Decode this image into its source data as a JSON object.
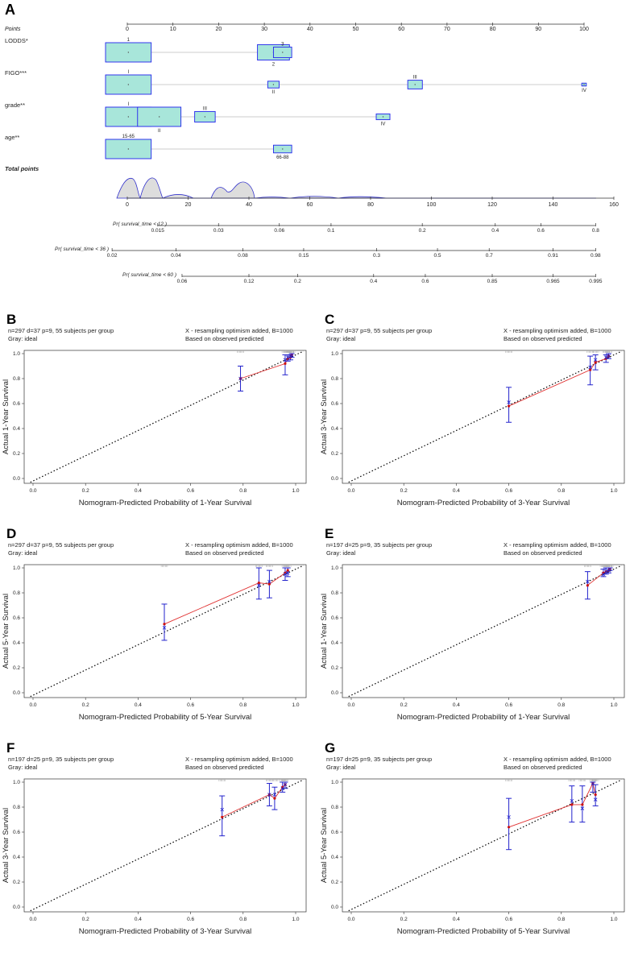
{
  "figure_title": "Nomogram and calibration curves",
  "chart_data": [
    {
      "panel": "A",
      "type": "nomogram",
      "points_axis": {
        "label": "Points",
        "ticks": [
          "0",
          "10",
          "20",
          "30",
          "40",
          "50",
          "60",
          "70",
          "80",
          "90",
          "100"
        ]
      },
      "variables": [
        {
          "name": "LODDS*",
          "levels": [
            {
              "label": "1",
              "points": 0,
              "box_width": 10,
              "box_height": 1.0
            },
            {
              "label": "2",
              "points": 32,
              "box_width": 7,
              "box_height": 0.8
            },
            {
              "label": "3",
              "points": 34,
              "box_width": 4,
              "box_height": 0.55
            }
          ]
        },
        {
          "name": "FIGO***",
          "levels": [
            {
              "label": "I",
              "points": 0,
              "box_width": 10,
              "box_height": 1.0
            },
            {
              "label": "II",
              "points": 32,
              "box_width": 2.5,
              "box_height": 0.35
            },
            {
              "label": "III",
              "points": 63,
              "box_width": 3.2,
              "box_height": 0.45
            },
            {
              "label": "IV",
              "points": 100,
              "box_width": 1,
              "box_height": 0.15
            }
          ]
        },
        {
          "name": "grade**",
          "levels": [
            {
              "label": "I",
              "points": 0,
              "box_width": 10,
              "box_height": 1.0
            },
            {
              "label": "II",
              "points": 7,
              "box_width": 9.5,
              "box_height": 1.0
            },
            {
              "label": "III",
              "points": 17,
              "box_width": 4.5,
              "box_height": 0.55
            },
            {
              "label": "IV",
              "points": 56,
              "box_width": 3,
              "box_height": 0.3
            }
          ]
        },
        {
          "name": "age**",
          "levels": [
            {
              "label": "15-65",
              "points": 0,
              "box_width": 10,
              "box_height": 1.0
            },
            {
              "label": "66-88",
              "points": 34,
              "box_width": 4,
              "box_height": 0.4
            }
          ]
        }
      ],
      "total_points_axis": {
        "label": "Total points",
        "ticks": [
          "0",
          "20",
          "40",
          "60",
          "80",
          "100",
          "120",
          "140",
          "160"
        ]
      },
      "probability_axes": [
        {
          "label": "Pr( survival_time < 12 )",
          "ticks": [
            {
              "label": "0.015",
              "total": 10
            },
            {
              "label": "0.03",
              "total": 30
            },
            {
              "label": "0.06",
              "total": 50
            },
            {
              "label": "0.1",
              "total": 67
            },
            {
              "label": "0.2",
              "total": 97
            },
            {
              "label": "0.4",
              "total": 121
            },
            {
              "label": "0.6",
              "total": 136
            },
            {
              "label": "0.8",
              "total": 154
            }
          ]
        },
        {
          "label": "Pr( survival_time < 36 )",
          "ticks": [
            {
              "label": "0.02",
              "total": -5
            },
            {
              "label": "0.04",
              "total": 16
            },
            {
              "label": "0.08",
              "total": 38
            },
            {
              "label": "0.15",
              "total": 58
            },
            {
              "label": "0.3",
              "total": 82
            },
            {
              "label": "0.5",
              "total": 102
            },
            {
              "label": "0.7",
              "total": 119
            },
            {
              "label": "0.91",
              "total": 140
            },
            {
              "label": "0.98",
              "total": 154
            }
          ]
        },
        {
          "label": "Pr( survival_time < 60 )",
          "ticks": [
            {
              "label": "0.06",
              "total": 18
            },
            {
              "label": "0.12",
              "total": 40
            },
            {
              "label": "0.2",
              "total": 56
            },
            {
              "label": "0.4",
              "total": 81
            },
            {
              "label": "0.6",
              "total": 98
            },
            {
              "label": "0.85",
              "total": 120
            },
            {
              "label": "0.965",
              "total": 140
            },
            {
              "label": "0.995",
              "total": 154
            }
          ]
        }
      ]
    },
    {
      "panel": "B",
      "type": "calibration",
      "info_left": [
        "n=297 d=37 p=9, 55 subjects per group",
        "Gray: ideal"
      ],
      "info_right": [
        "X - resampling optimism added, B=1000",
        "Based on observed  predicted"
      ],
      "xlabel": "Nomogram-Predicted Probability of 1-Year Survival",
      "ylabel": "Actual 1-Year Survival",
      "xlim": [
        0,
        1
      ],
      "ylim": [
        0,
        1
      ],
      "ticks": [
        "0.0",
        "0.2",
        "0.4",
        "0.6",
        "0.8",
        "1.0"
      ],
      "points": [
        {
          "x": 0.79,
          "y": 0.8,
          "lo": 0.7,
          "hi": 0.9,
          "xc": 0.8
        },
        {
          "x": 0.96,
          "y": 0.92,
          "lo": 0.83,
          "hi": 0.99,
          "xc": 0.95
        },
        {
          "x": 0.97,
          "y": 0.96,
          "lo": 0.94,
          "hi": 0.99,
          "xc": 0.97
        },
        {
          "x": 0.98,
          "y": 0.97,
          "lo": 0.95,
          "hi": 0.99,
          "xc": 0.98
        },
        {
          "x": 0.985,
          "y": 0.99,
          "lo": 0.97,
          "hi": 1.0,
          "xc": 0.99
        }
      ]
    },
    {
      "panel": "C",
      "type": "calibration",
      "info_left": [
        "n=297 d=37 p=9, 55 subjects per group",
        "Gray: ideal"
      ],
      "info_right": [
        "X - resampling optimism added, B=1000",
        "Based on observed  predicted"
      ],
      "xlabel": "Nomogram-Predicted Probability of 3-Year Survival",
      "ylabel": "Actual 3-Year Survival",
      "xlim": [
        0,
        1
      ],
      "ylim": [
        0,
        1
      ],
      "ticks": [
        "0.0",
        "0.2",
        "0.4",
        "0.6",
        "0.8",
        "1.0"
      ],
      "points": [
        {
          "x": 0.6,
          "y": 0.58,
          "lo": 0.45,
          "hi": 0.73,
          "xc": 0.61
        },
        {
          "x": 0.91,
          "y": 0.87,
          "lo": 0.75,
          "hi": 0.98,
          "xc": 0.89
        },
        {
          "x": 0.93,
          "y": 0.93,
          "lo": 0.87,
          "hi": 0.99,
          "xc": 0.95
        },
        {
          "x": 0.97,
          "y": 0.96,
          "lo": 0.93,
          "hi": 0.99,
          "xc": 0.97
        },
        {
          "x": 0.98,
          "y": 0.98,
          "lo": 0.96,
          "hi": 1.0,
          "xc": 0.98
        }
      ]
    },
    {
      "panel": "D",
      "type": "calibration",
      "info_left": [
        "n=297 d=37 p=9, 55 subjects per group",
        "Gray: ideal"
      ],
      "info_right": [
        "X - resampling optimism added, B=1000",
        "Based on observed  predicted"
      ],
      "xlabel": "Nomogram-Predicted Probability of 5-Year Survival",
      "ylabel": "Actual 5-Year Survival",
      "xlim": [
        0,
        1
      ],
      "ylim": [
        0,
        1
      ],
      "ticks": [
        "0.0",
        "0.2",
        "0.4",
        "0.6",
        "0.8",
        "1.0"
      ],
      "points": [
        {
          "x": 0.5,
          "y": 0.55,
          "lo": 0.42,
          "hi": 0.71,
          "xc": 0.52
        },
        {
          "x": 0.86,
          "y": 0.88,
          "lo": 0.75,
          "hi": 1.0,
          "xc": 0.86
        },
        {
          "x": 0.9,
          "y": 0.87,
          "lo": 0.76,
          "hi": 0.98,
          "xc": 0.89
        },
        {
          "x": 0.96,
          "y": 0.96,
          "lo": 0.9,
          "hi": 1.0,
          "xc": 0.95
        },
        {
          "x": 0.97,
          "y": 0.98,
          "lo": 0.93,
          "hi": 1.0,
          "xc": 0.96
        }
      ]
    },
    {
      "panel": "E",
      "type": "calibration",
      "info_left": [
        "n=197 d=25 p=9, 35 subjects per group",
        "Gray: ideal"
      ],
      "info_right": [
        "X - resampling optimism added, B=1000",
        "Based on observed  predicted"
      ],
      "xlabel": "Nomogram-Predicted Probability of 1-Year Survival",
      "ylabel": "Actual 1-Year Survival",
      "xlim": [
        0,
        1
      ],
      "ylim": [
        0,
        1
      ],
      "ticks": [
        "0.0",
        "0.2",
        "0.4",
        "0.6",
        "0.8",
        "1.0"
      ],
      "points": [
        {
          "x": 0.9,
          "y": 0.86,
          "lo": 0.75,
          "hi": 0.97,
          "xc": 0.89
        },
        {
          "x": 0.96,
          "y": 0.96,
          "lo": 0.93,
          "hi": 0.99,
          "xc": 0.95
        },
        {
          "x": 0.97,
          "y": 0.97,
          "lo": 0.95,
          "hi": 1.0,
          "xc": 0.97
        },
        {
          "x": 0.98,
          "y": 0.98,
          "lo": 0.96,
          "hi": 1.0,
          "xc": 0.98
        },
        {
          "x": 0.985,
          "y": 0.99,
          "lo": 0.98,
          "hi": 1.0,
          "xc": 0.99
        }
      ]
    },
    {
      "panel": "F",
      "type": "calibration",
      "info_left": [
        "n=197 d=25 p=9, 35 subjects per group",
        "Gray: ideal"
      ],
      "info_right": [
        "X - resampling optimism added, B=1000",
        "Based on observed  predicted"
      ],
      "xlabel": "Nomogram-Predicted Probability of 3-Year Survival",
      "ylabel": "Actual 3-Year Survival",
      "xlim": [
        0,
        1
      ],
      "ylim": [
        0,
        1
      ],
      "ticks": [
        "0.0",
        "0.2",
        "0.4",
        "0.6",
        "0.8",
        "1.0"
      ],
      "points": [
        {
          "x": 0.72,
          "y": 0.72,
          "lo": 0.57,
          "hi": 0.89,
          "xc": 0.78
        },
        {
          "x": 0.9,
          "y": 0.9,
          "lo": 0.81,
          "hi": 0.99,
          "xc": 0.9
        },
        {
          "x": 0.92,
          "y": 0.87,
          "lo": 0.78,
          "hi": 0.96,
          "xc": 0.9
        },
        {
          "x": 0.95,
          "y": 0.96,
          "lo": 0.92,
          "hi": 1.0,
          "xc": 0.95
        },
        {
          "x": 0.96,
          "y": 0.98,
          "lo": 0.95,
          "hi": 1.0,
          "xc": 0.98
        }
      ]
    },
    {
      "panel": "G",
      "type": "calibration",
      "info_left": [
        "n=197 d=25 p=9, 35 subjects per group",
        "Gray: ideal"
      ],
      "info_right": [
        "X - resampling optimism added, B=1000",
        "Based on observed  predicted"
      ],
      "xlabel": "Nomogram-Predicted Probability of 5-Year Survival",
      "ylabel": "Actual 5-Year Survival",
      "xlim": [
        0,
        1
      ],
      "ylim": [
        0,
        1
      ],
      "ticks": [
        "0.0",
        "0.2",
        "0.4",
        "0.6",
        "0.8",
        "1.0"
      ],
      "points": [
        {
          "x": 0.6,
          "y": 0.64,
          "lo": 0.46,
          "hi": 0.87,
          "xc": 0.72
        },
        {
          "x": 0.84,
          "y": 0.82,
          "lo": 0.68,
          "hi": 0.97,
          "xc": 0.85
        },
        {
          "x": 0.88,
          "y": 0.82,
          "lo": 0.68,
          "hi": 0.97,
          "xc": 0.79
        },
        {
          "x": 0.92,
          "y": 0.99,
          "lo": 0.92,
          "hi": 1.0,
          "xc": 0.99
        },
        {
          "x": 0.93,
          "y": 0.9,
          "lo": 0.81,
          "hi": 0.98,
          "xc": 0.86
        }
      ]
    }
  ],
  "colors": {
    "box_fill": "#a8e6da",
    "box_stroke": "#2222ee",
    "calib_line": "#e03030",
    "err_bar": "#2222cc",
    "point": "#cc1111",
    "ideal": "#000000",
    "density_fill": "#dddddd",
    "density_line": "#3333cc"
  }
}
